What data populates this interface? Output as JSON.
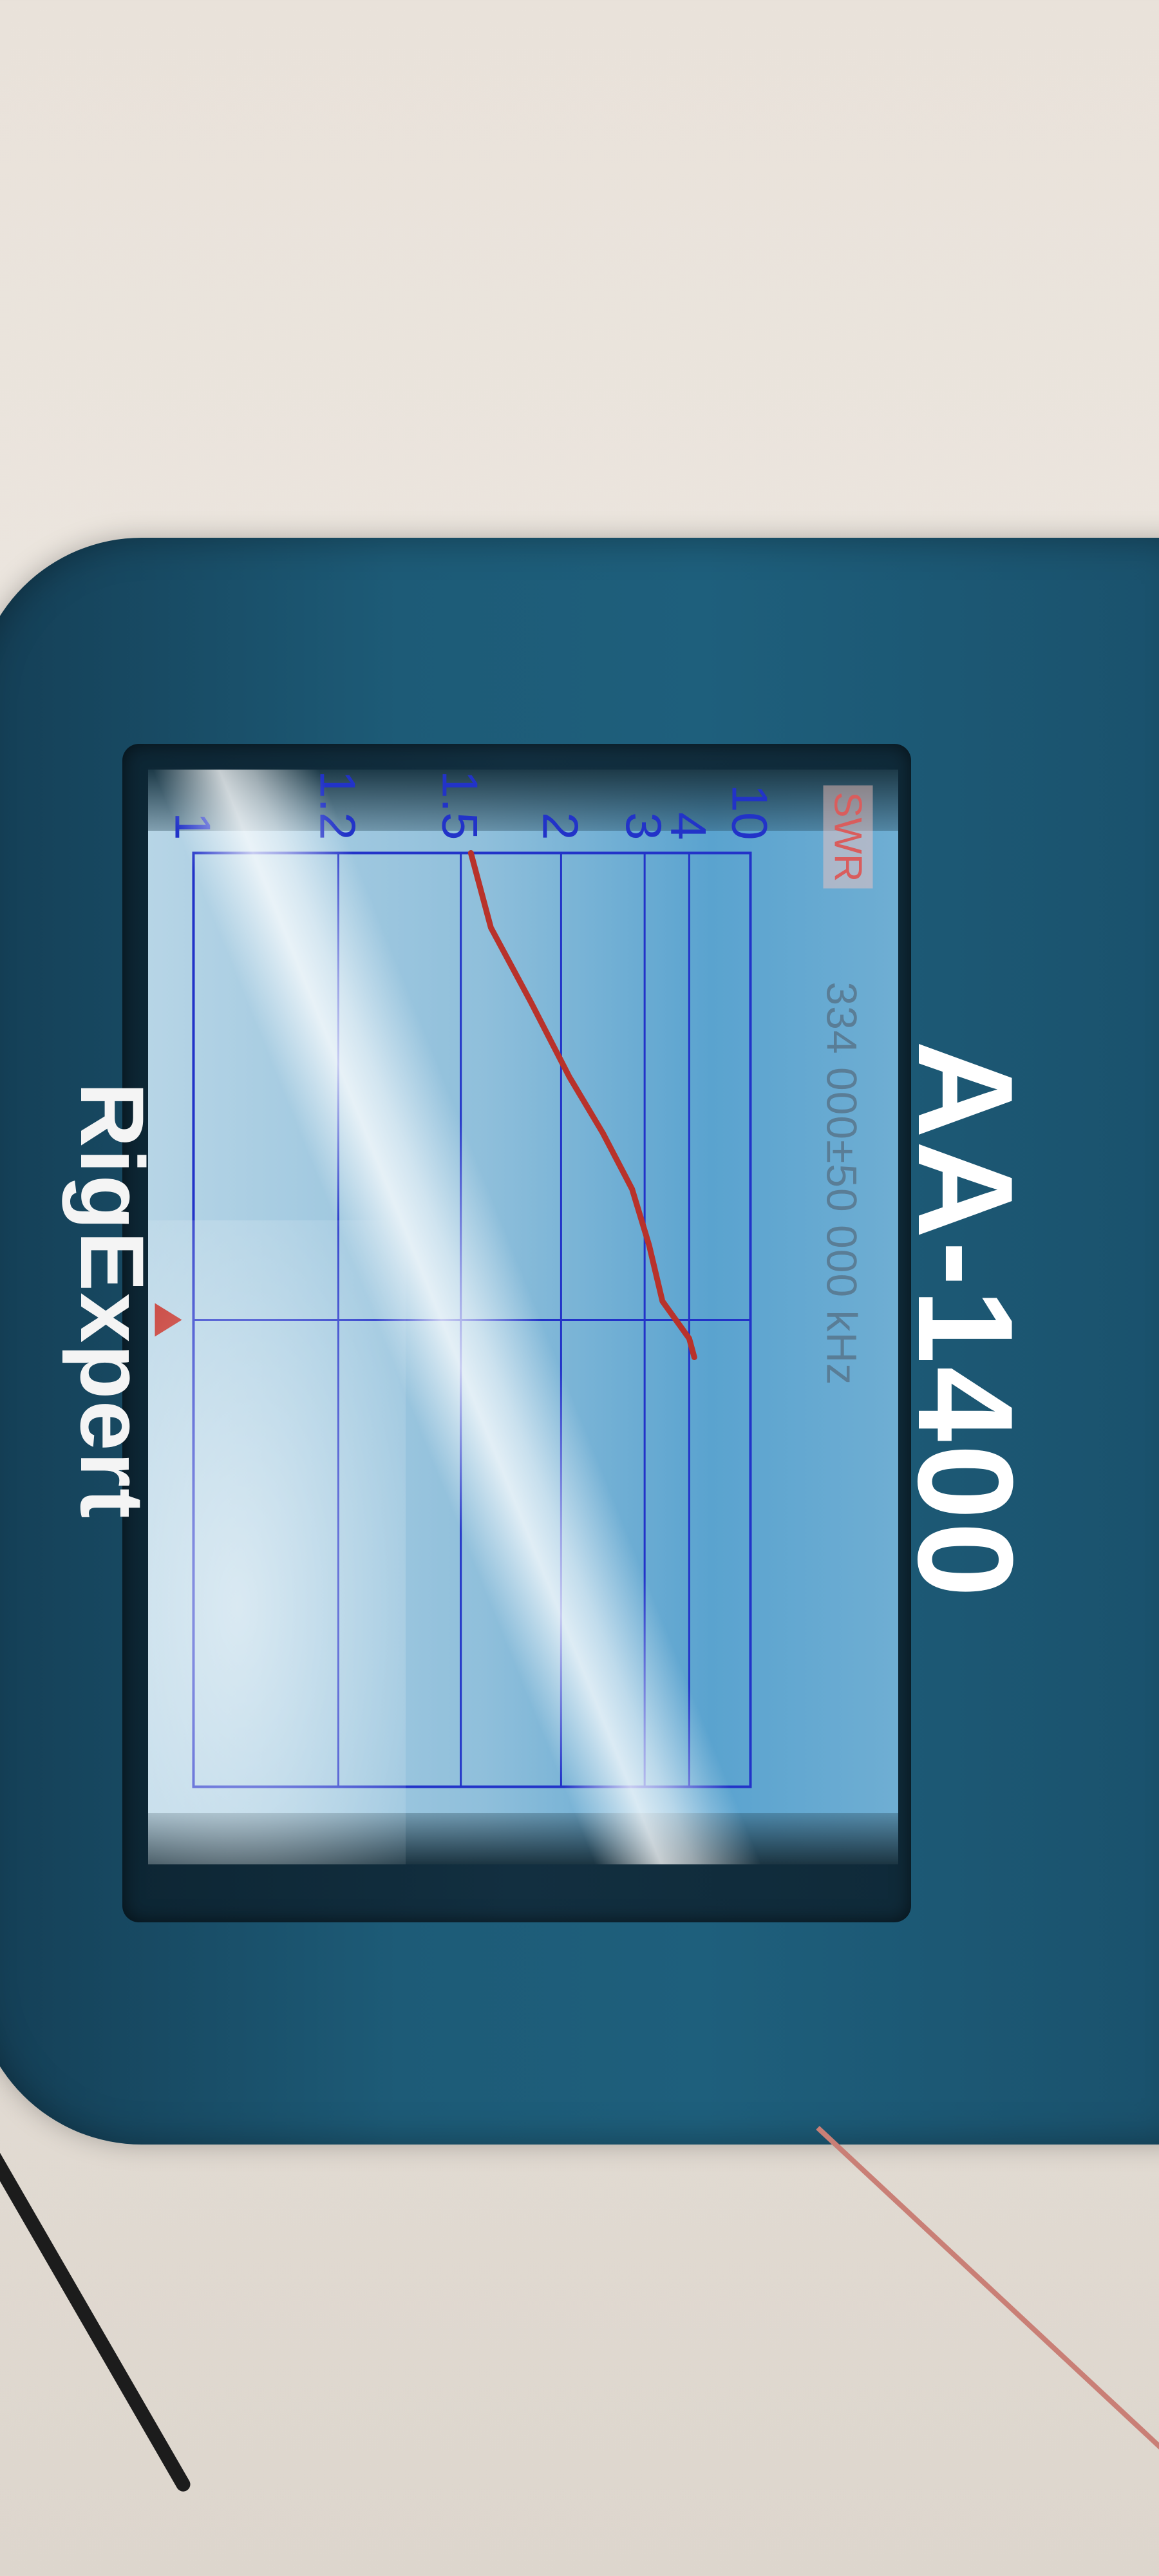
{
  "device": {
    "brand": "RigExpert",
    "model": "AA-1400"
  },
  "screen": {
    "mode_label": "SWR",
    "frequency_range": "334 000±50 000 kHz"
  },
  "chart_data": {
    "type": "line",
    "ylabel": "",
    "xlabel": "",
    "y_ticks": [
      "10",
      "4",
      "3",
      "2",
      "1.5",
      "1.2",
      "1"
    ],
    "y_scale": "swr",
    "x_range": [
      284000,
      384000
    ],
    "x_unit": "kHz",
    "series": [
      {
        "color": "#b8322b",
        "x": [
          284000,
          292000,
          300000,
          308000,
          314000,
          320000,
          326000,
          332000,
          334000,
          336000,
          338000
        ],
        "y": [
          1.55,
          1.65,
          1.85,
          2.1,
          2.5,
          2.85,
          3.1,
          3.4,
          3.7,
          4.0,
          4.5
        ]
      }
    ],
    "marker": {
      "x": 334000,
      "color": "#c0271f"
    },
    "grid": true
  }
}
